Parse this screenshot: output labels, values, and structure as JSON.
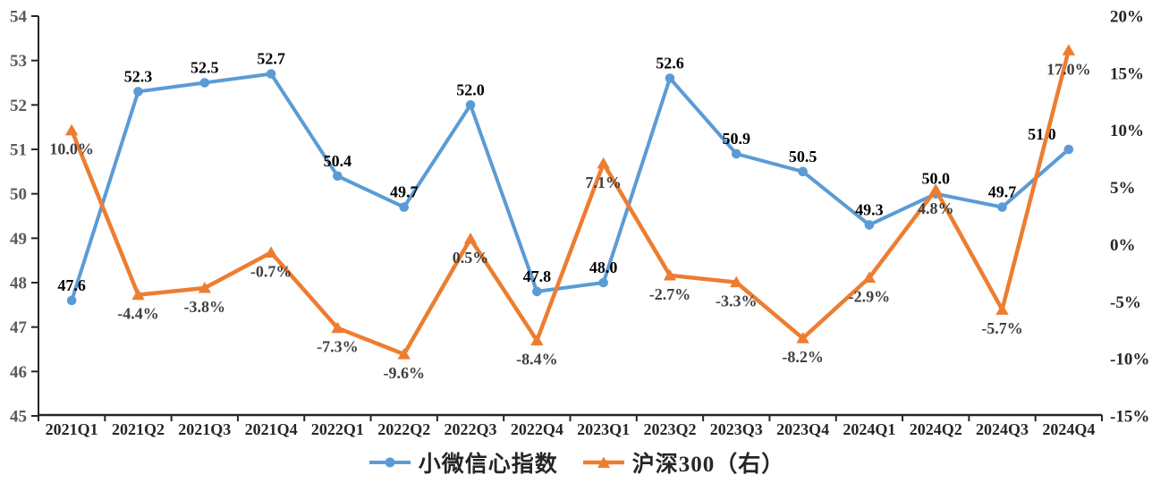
{
  "chart_data": {
    "type": "line",
    "title": "",
    "grid": false,
    "legend_position": "bottom",
    "categories": [
      "2021Q1",
      "2021Q2",
      "2021Q3",
      "2021Q4",
      "2022Q1",
      "2022Q2",
      "2022Q3",
      "2022Q4",
      "2023Q1",
      "2023Q2",
      "2023Q3",
      "2023Q4",
      "2024Q1",
      "2024Q2",
      "2024Q3",
      "2024Q4"
    ],
    "series": [
      {
        "name": "小微信心指数",
        "axis": "left",
        "color": "#5B9BD5",
        "marker": "circle",
        "values": [
          47.6,
          52.3,
          52.5,
          52.7,
          50.4,
          49.7,
          52.0,
          47.8,
          48.0,
          52.6,
          50.9,
          50.5,
          49.3,
          50.0,
          49.7,
          51.0
        ],
        "labels": [
          "47.6",
          "52.3",
          "52.5",
          "52.7",
          "50.4",
          "49.7",
          "52.0",
          "47.8",
          "48.0",
          "52.6",
          "50.9",
          "50.5",
          "49.3",
          "50.0",
          "49.7",
          "51.0"
        ]
      },
      {
        "name": "沪深300（右）",
        "axis": "right",
        "color": "#ED7D31",
        "marker": "triangle",
        "values": [
          10.0,
          -4.4,
          -3.8,
          -0.7,
          -7.3,
          -9.6,
          0.5,
          -8.4,
          7.1,
          -2.7,
          -3.3,
          -8.2,
          -2.9,
          4.8,
          -5.7,
          17.0
        ],
        "labels": [
          "10.0%",
          "-4.4%",
          "-3.8%",
          "-0.7%",
          "-7.3%",
          "-9.6%",
          "0.5%",
          "-8.4%",
          "7.1%",
          "-2.7%",
          "-3.3%",
          "-8.2%",
          "-2.9%",
          "4.8%",
          "-5.7%",
          "17.0%"
        ]
      }
    ],
    "left_axis": {
      "min": 45,
      "max": 54,
      "step": 1,
      "tick_labels": [
        "45",
        "46",
        "47",
        "48",
        "49",
        "50",
        "51",
        "52",
        "53",
        "54"
      ]
    },
    "right_axis": {
      "min": -15,
      "max": 20,
      "step": 5,
      "tick_labels": [
        "-15%",
        "-10%",
        "-5%",
        "0%",
        "5%",
        "10%",
        "15%",
        "20%"
      ]
    },
    "legend": [
      {
        "label": "小微信心指数",
        "color": "#5B9BD5",
        "marker": "circle"
      },
      {
        "label": "沪深300（右）",
        "color": "#ED7D31",
        "marker": "triangle"
      }
    ]
  },
  "colors": {
    "series_blue": "#5B9BD5",
    "series_orange": "#ED7D31",
    "axis_line": "#262626",
    "left_tick_text": "#595959",
    "right_tick_text": "#262626",
    "x_tick_text": "#262626",
    "blue_label_text": "#000000",
    "orange_label_text": "#404040",
    "background": "#ffffff"
  }
}
